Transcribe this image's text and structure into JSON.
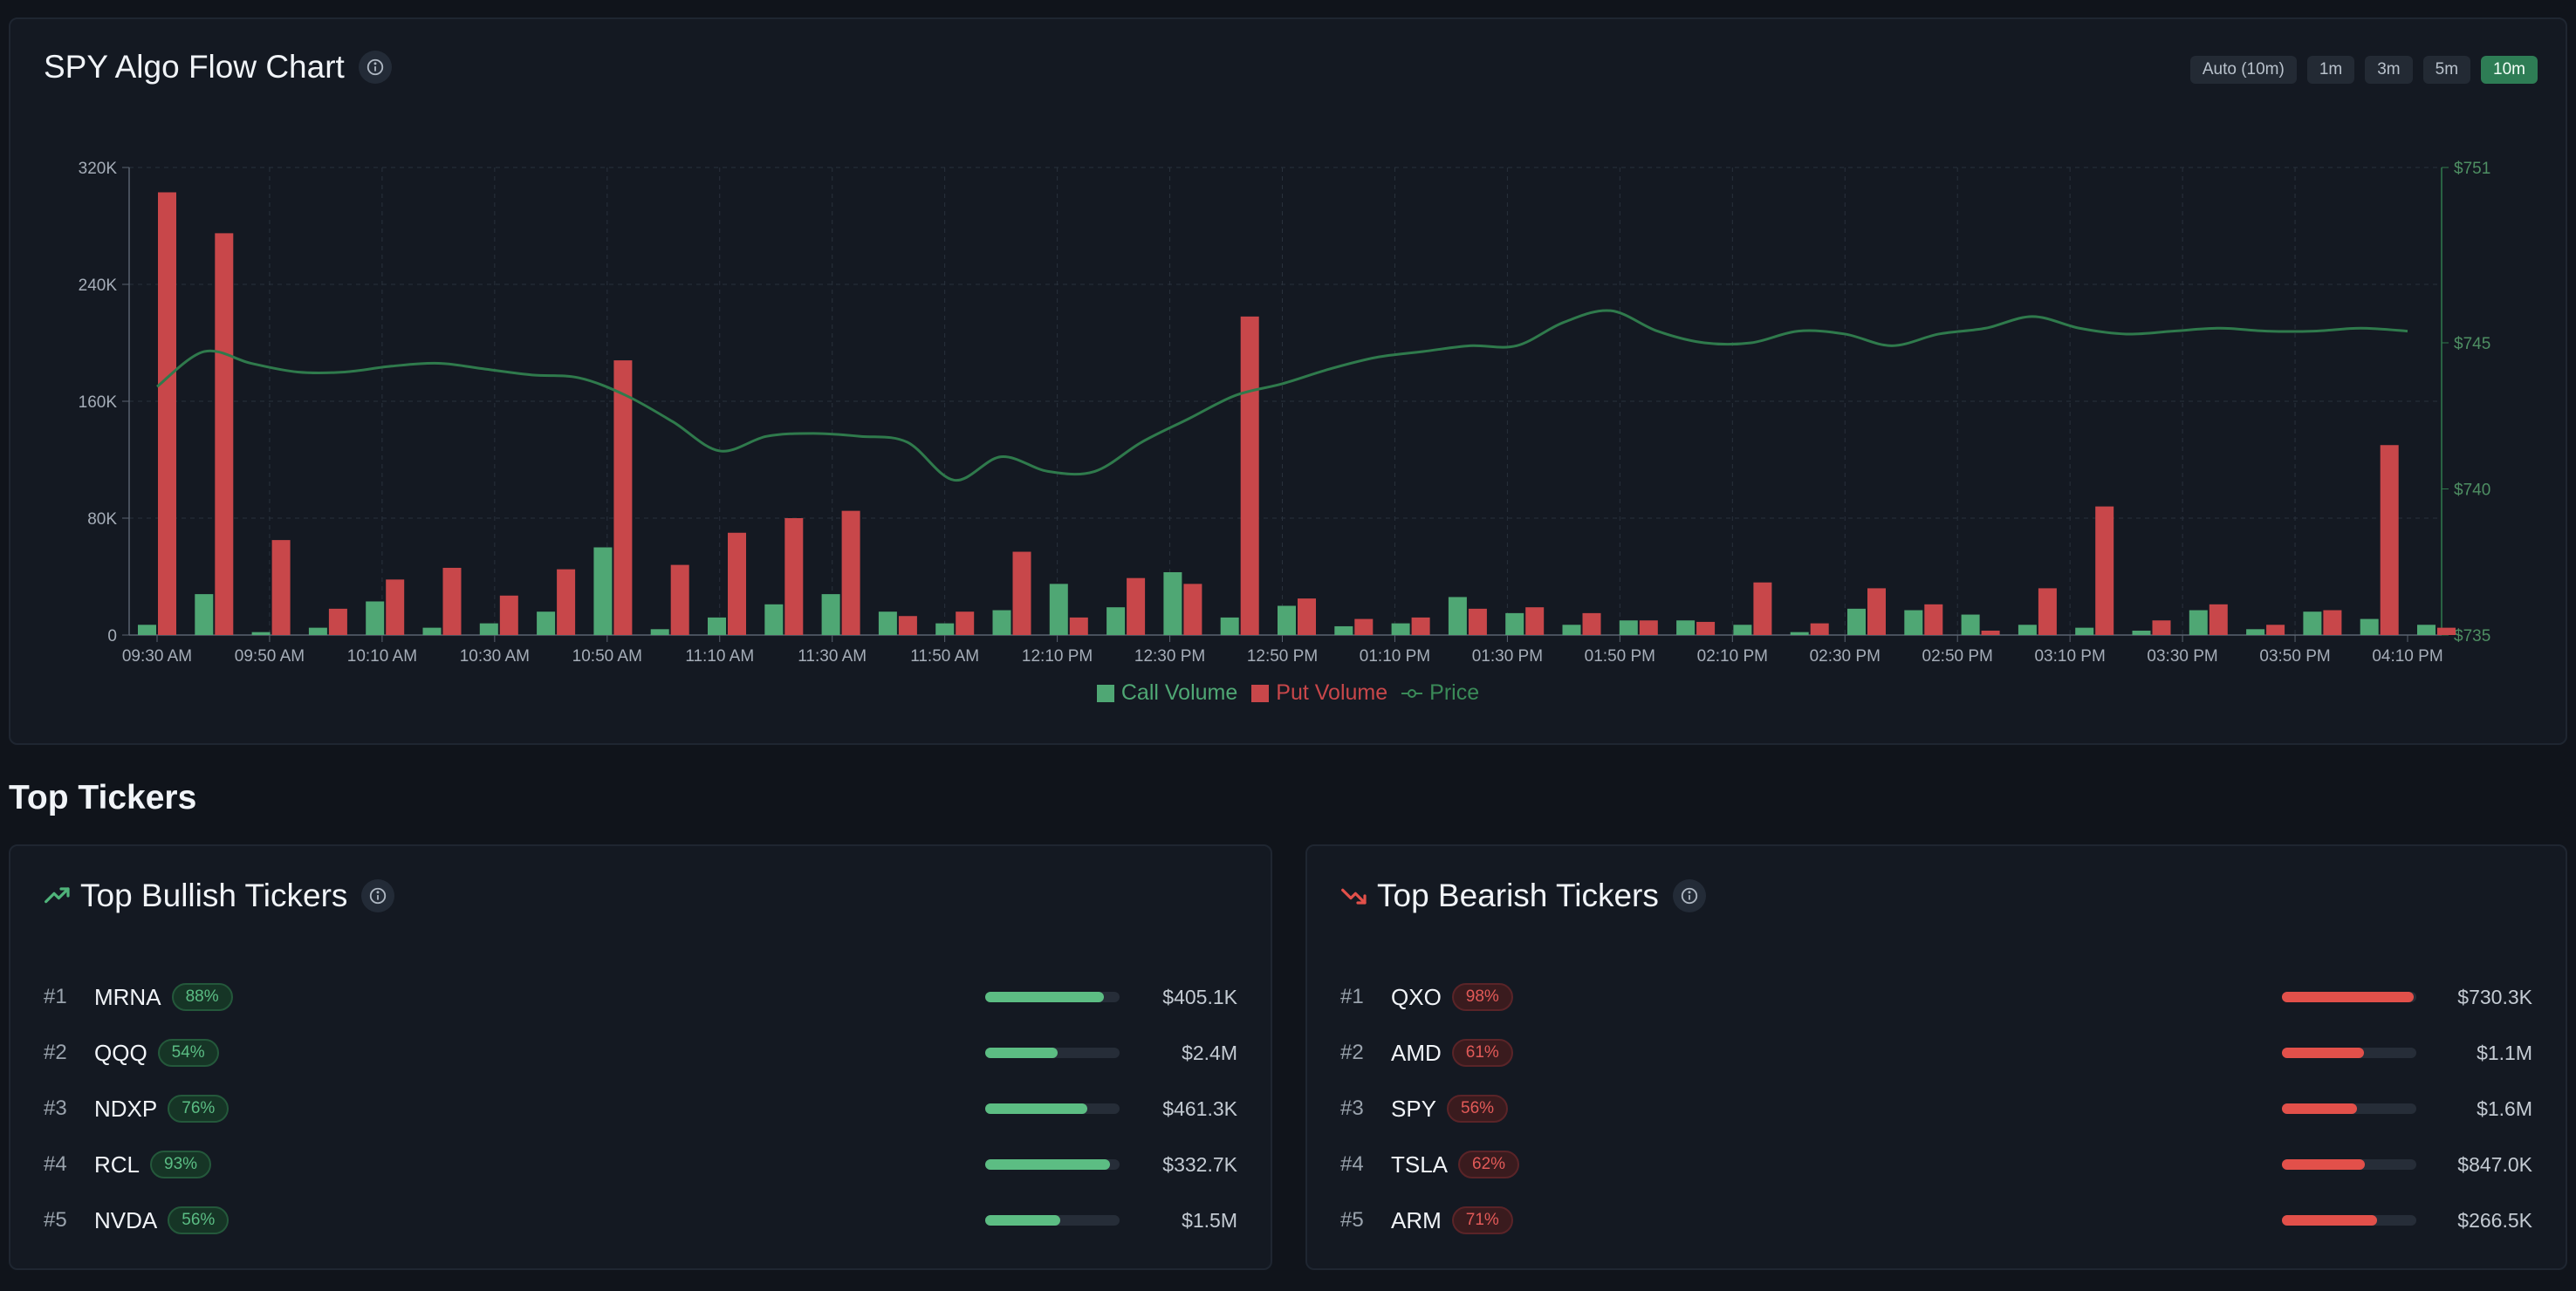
{
  "chart_panel": {
    "title": "SPY Algo Flow Chart",
    "timeframes": [
      {
        "label": "Auto (10m)",
        "active": false
      },
      {
        "label": "1m",
        "active": false
      },
      {
        "label": "3m",
        "active": false
      },
      {
        "label": "5m",
        "active": false
      },
      {
        "label": "10m",
        "active": true
      }
    ]
  },
  "chart_data": {
    "type": "bar",
    "series": [
      {
        "name": "Call Volume",
        "color": "#4fa774"
      },
      {
        "name": "Put Volume",
        "color": "#c8474a"
      },
      {
        "name": "Price",
        "color": "#2f7a4c"
      }
    ],
    "x_tick_labels": [
      "09:30 AM",
      "09:50 AM",
      "10:10 AM",
      "10:30 AM",
      "10:50 AM",
      "11:10 AM",
      "11:30 AM",
      "11:50 AM",
      "12:10 PM",
      "12:30 PM",
      "12:50 PM",
      "01:10 PM",
      "01:30 PM",
      "01:50 PM",
      "02:10 PM",
      "02:30 PM",
      "02:50 PM",
      "03:10 PM",
      "03:30 PM",
      "03:50 PM",
      "04:10 PM"
    ],
    "y_left_ticks": [
      "0",
      "80K",
      "160K",
      "240K",
      "320K"
    ],
    "y_left_range": [
      0,
      320000
    ],
    "y_right_ticks": [
      "$735",
      "$740",
      "$745",
      "$751"
    ],
    "y_right_values": [
      735,
      740,
      745,
      751
    ],
    "y_right_range": [
      735,
      751
    ],
    "grid": true,
    "legend_position": "bottom-center",
    "calls": [
      7000,
      28000,
      2000,
      5000,
      23000,
      5000,
      8000,
      16000,
      60000,
      4000,
      12000,
      21000,
      28000,
      16000,
      8000,
      17000,
      35000,
      19000,
      43000,
      12000,
      20000,
      6000,
      8000,
      26000,
      15000,
      7000,
      10000,
      10000,
      7000,
      2000,
      18000,
      17000,
      14000,
      7000,
      5000,
      3000,
      17000,
      4000,
      16000,
      11000,
      7000
    ],
    "puts": [
      303000,
      275000,
      65000,
      18000,
      38000,
      46000,
      27000,
      45000,
      188000,
      48000,
      70000,
      80000,
      85000,
      13000,
      16000,
      57000,
      12000,
      39000,
      35000,
      218000,
      25000,
      11000,
      12000,
      18000,
      19000,
      15000,
      10000,
      9000,
      36000,
      8000,
      32000,
      21000,
      3000,
      32000,
      88000,
      10000,
      21000,
      7000,
      17000,
      130000,
      5000
    ],
    "price": [
      743.5,
      744.7,
      744.3,
      744.0,
      744.0,
      744.2,
      744.3,
      744.1,
      743.9,
      743.8,
      743.2,
      742.3,
      741.3,
      741.8,
      741.9,
      741.8,
      741.6,
      740.3,
      741.1,
      740.6,
      740.6,
      741.6,
      742.4,
      743.2,
      743.6,
      744.1,
      744.5,
      744.7,
      744.9,
      744.9,
      745.7,
      746.1,
      745.4,
      745.0,
      745.0,
      745.4,
      745.3,
      744.9,
      745.3,
      745.5,
      745.9,
      745.5,
      745.3,
      745.4,
      745.5,
      745.4,
      745.4,
      745.5,
      745.4
    ]
  },
  "section_title": "Top Tickers",
  "bullish": {
    "title": "Top Bullish Tickers",
    "items": [
      {
        "rank": "#1",
        "symbol": "MRNA",
        "pct": "88%",
        "fill": 0.88,
        "amount": "$405.1K"
      },
      {
        "rank": "#2",
        "symbol": "QQQ",
        "pct": "54%",
        "fill": 0.54,
        "amount": "$2.4M"
      },
      {
        "rank": "#3",
        "symbol": "NDXP",
        "pct": "76%",
        "fill": 0.76,
        "amount": "$461.3K"
      },
      {
        "rank": "#4",
        "symbol": "RCL",
        "pct": "93%",
        "fill": 0.93,
        "amount": "$332.7K"
      },
      {
        "rank": "#5",
        "symbol": "NVDA",
        "pct": "56%",
        "fill": 0.56,
        "amount": "$1.5M"
      }
    ]
  },
  "bearish": {
    "title": "Top Bearish Tickers",
    "items": [
      {
        "rank": "#1",
        "symbol": "QXO",
        "pct": "98%",
        "fill": 0.98,
        "amount": "$730.3K"
      },
      {
        "rank": "#2",
        "symbol": "AMD",
        "pct": "61%",
        "fill": 0.61,
        "amount": "$1.1M"
      },
      {
        "rank": "#3",
        "symbol": "SPY",
        "pct": "56%",
        "fill": 0.56,
        "amount": "$1.6M"
      },
      {
        "rank": "#4",
        "symbol": "TSLA",
        "pct": "62%",
        "fill": 0.62,
        "amount": "$847.0K"
      },
      {
        "rank": "#5",
        "symbol": "ARM",
        "pct": "71%",
        "fill": 0.71,
        "amount": "$266.5K"
      }
    ]
  }
}
